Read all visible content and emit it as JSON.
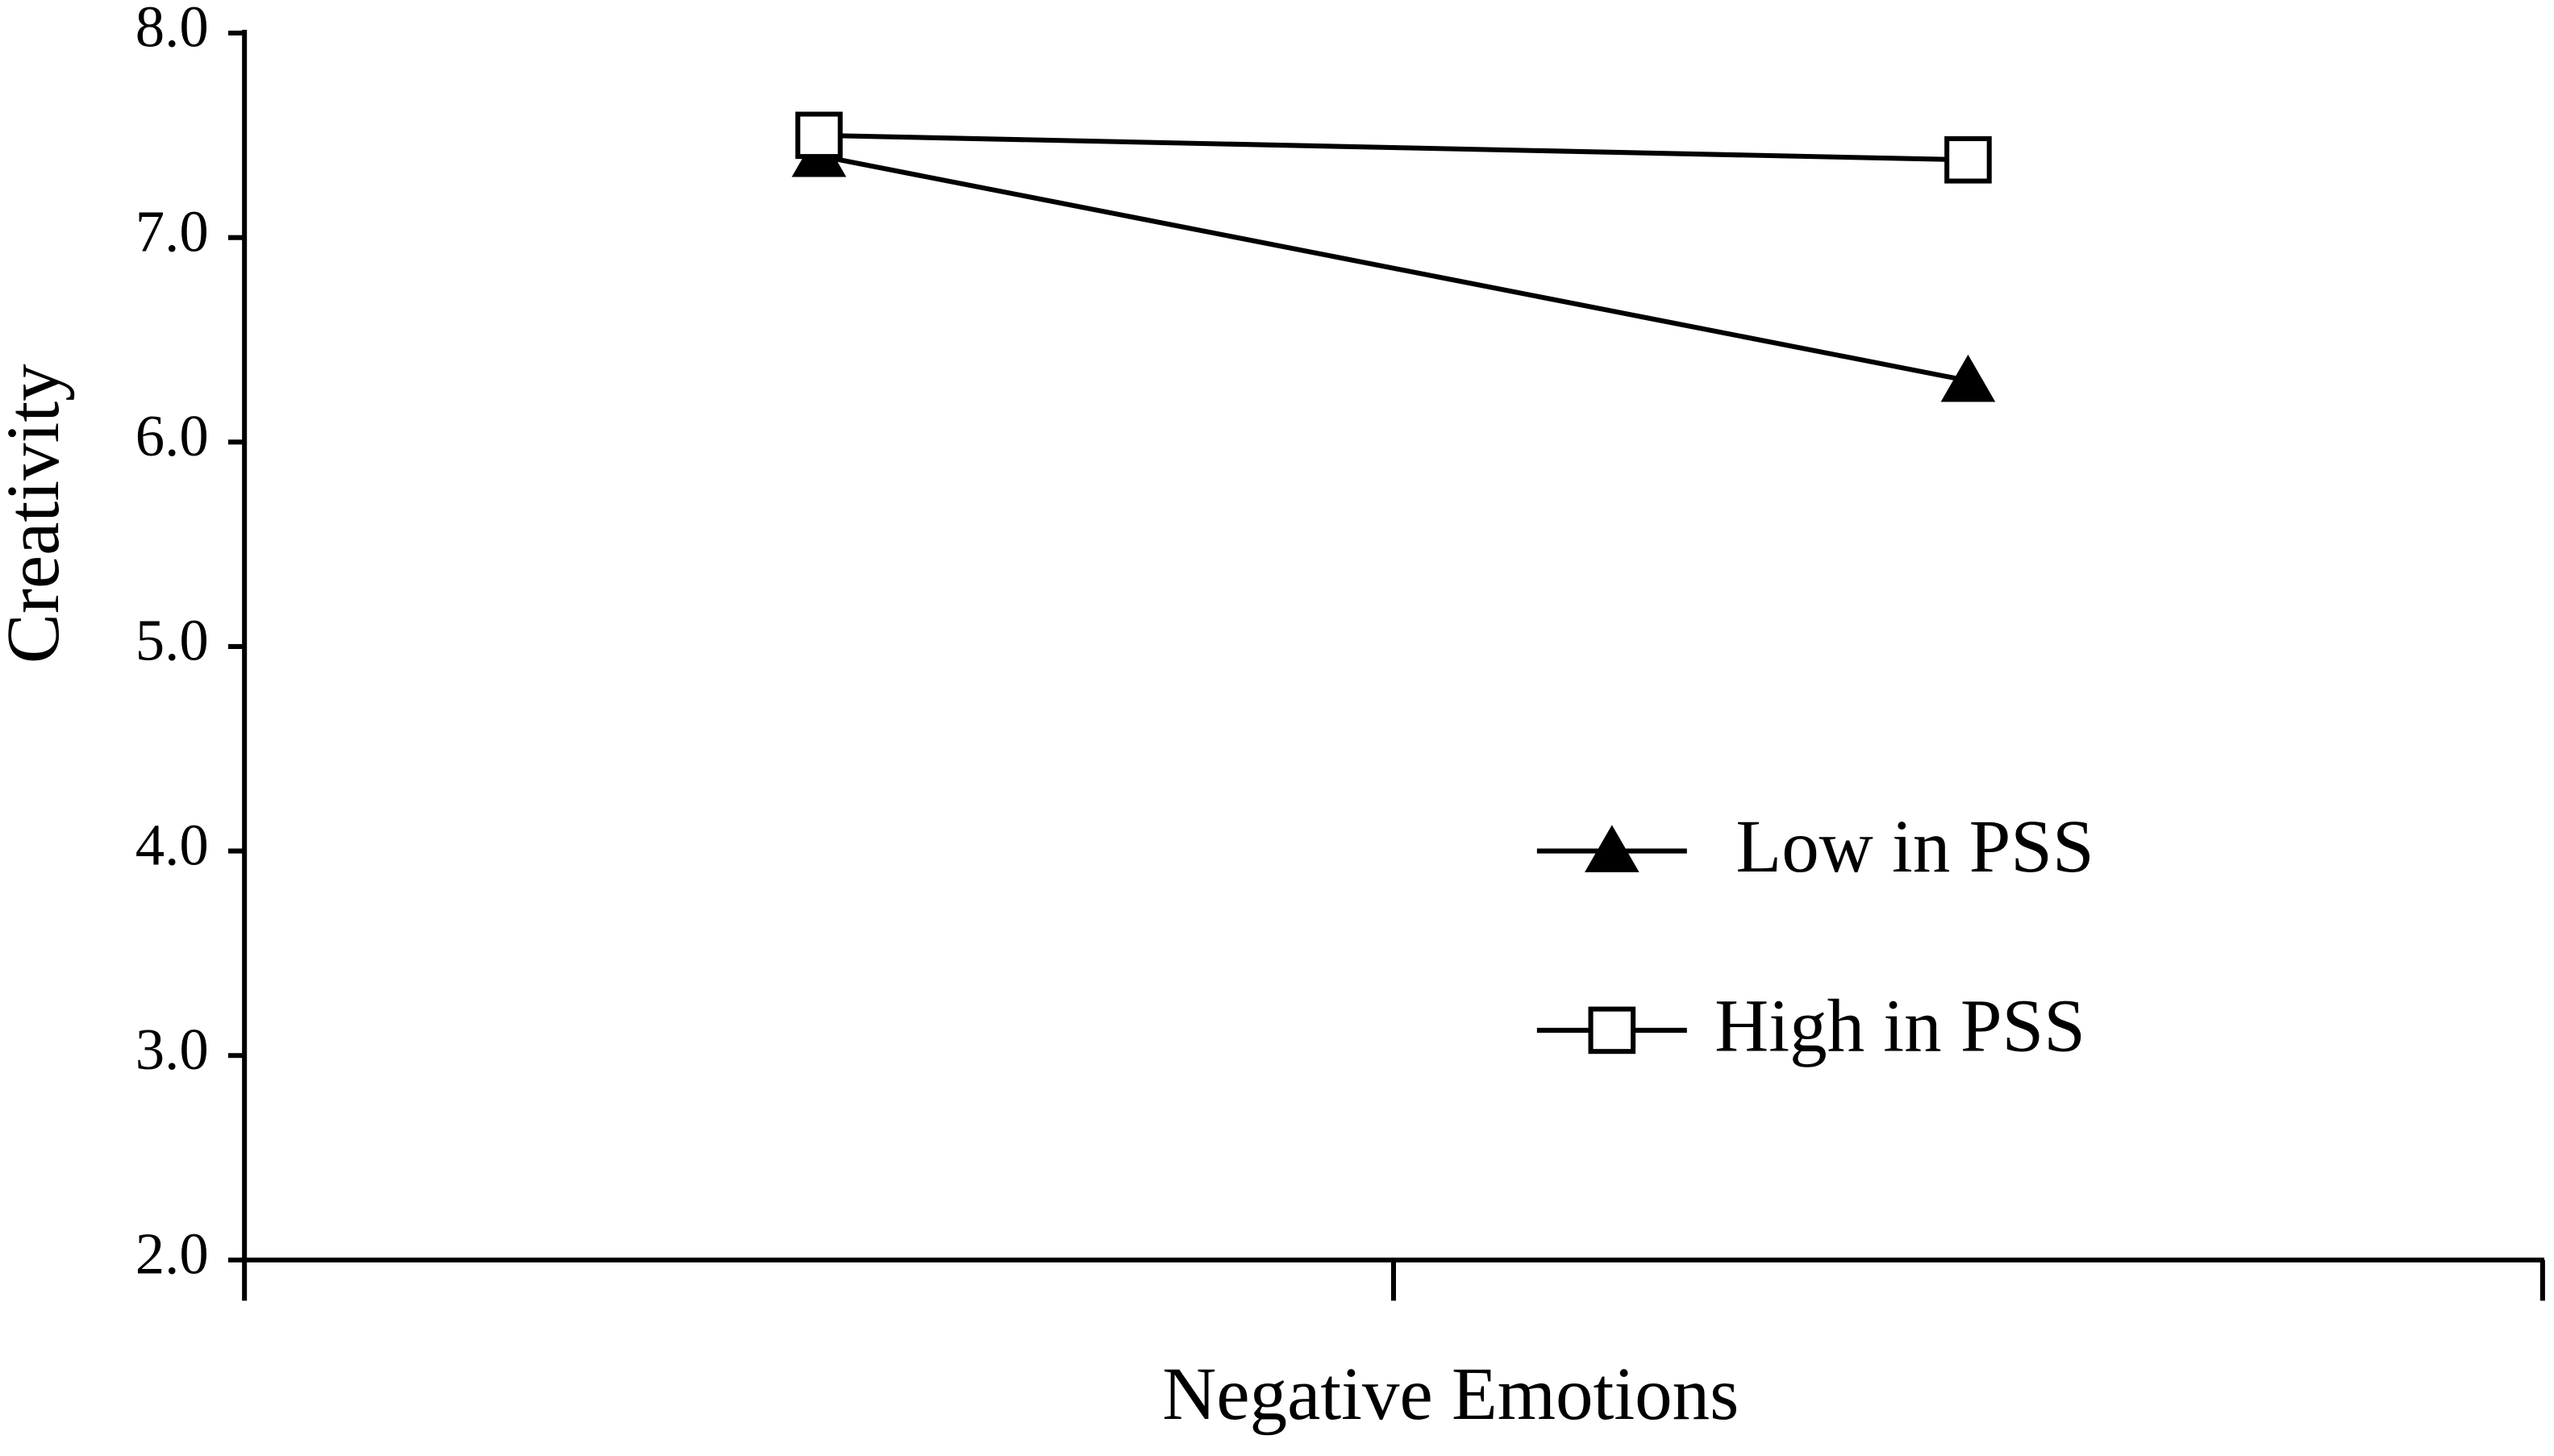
{
  "chart_data": {
    "type": "line",
    "x_label": "Negative Emotions",
    "y_label": "Creativity",
    "categories": [
      null,
      null
    ],
    "series": [
      {
        "name": "Low in PSS",
        "color": "#000000",
        "marker": "triangle",
        "values": [
          7.4,
          6.3
        ]
      },
      {
        "name": "High in PSS",
        "color": "#000000",
        "marker": "square",
        "values": [
          7.5,
          7.38
        ]
      }
    ],
    "ylim": [
      2,
      8
    ],
    "yticks": [
      {
        "value": 2,
        "label": "2.0"
      },
      {
        "value": 3,
        "label": "3.0"
      },
      {
        "value": 4,
        "label": "4.0"
      },
      {
        "value": 5,
        "label": "5.0"
      },
      {
        "value": 6,
        "label": "6.0"
      },
      {
        "value": 7,
        "label": "7.0"
      },
      {
        "value": 8,
        "label": "8.0"
      }
    ],
    "grid": false
  }
}
